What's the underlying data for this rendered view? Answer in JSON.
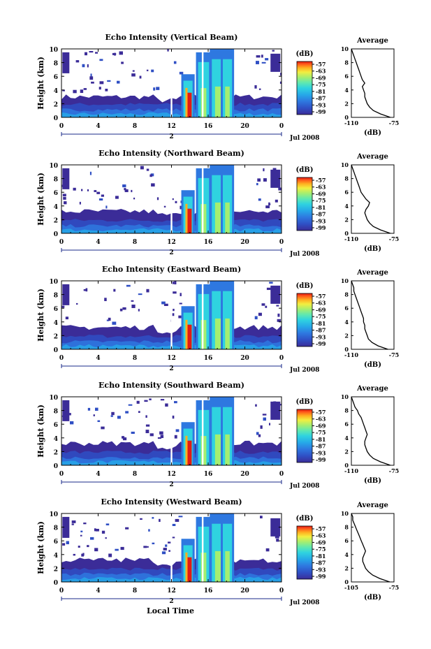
{
  "xlabel_bottom": "Local Time",
  "date_label": "Jul 2008",
  "day_label": "2",
  "colorbar_unit": "(dB)",
  "colorbar_ticks": [
    "-57",
    "-63",
    "-69",
    "-75",
    "-81",
    "-87",
    "-93",
    "-99"
  ],
  "average_title": "Average",
  "average_xlabel": "(dB)",
  "colorscale": [
    "#3b2c98",
    "#2f4fc4",
    "#2e78e0",
    "#26a7e8",
    "#2fd3e0",
    "#5fe8b0",
    "#a5ee70",
    "#f2ee40",
    "#ffb020",
    "#ff5a1a",
    "#e21a14"
  ],
  "chart_data": [
    {
      "type": "heatmap",
      "title": "Echo Intensity (Vertical Beam)",
      "ylabel": "Height (km)",
      "xlabel": "",
      "xticks": [
        "0",
        "4",
        "8",
        "12",
        "16",
        "20",
        "0"
      ],
      "xlim": [
        0,
        24
      ],
      "yticks": [
        "0",
        "2",
        "4",
        "6",
        "8",
        "10"
      ],
      "ylim": [
        0,
        10
      ],
      "colorbar_range_db": [
        -99,
        -57
      ],
      "average_profile": {
        "type": "line",
        "xticks": [
          "-110",
          "-75"
        ],
        "xlim": [
          -110,
          -75
        ],
        "yticks": [
          "0",
          "2",
          "4",
          "6",
          "8",
          "10"
        ],
        "height_km": [
          0,
          0.5,
          1,
          1.5,
          2,
          2.5,
          3,
          3.5,
          4,
          4.5,
          5,
          5.5,
          6,
          6.5,
          7,
          7.5,
          8,
          8.5,
          9,
          9.5,
          10
        ],
        "db": [
          -78,
          -86,
          -92,
          -95,
          -97,
          -98,
          -99,
          -99,
          -100,
          -101,
          -99,
          -101,
          -102,
          -103,
          -104,
          -105,
          -106,
          -107,
          -108,
          -109,
          -110
        ]
      }
    },
    {
      "type": "heatmap",
      "title": "Echo Intensity (Northward Beam)",
      "ylabel": "Height (km)",
      "xlabel": "",
      "xticks": [
        "0",
        "4",
        "8",
        "12",
        "16",
        "20",
        "0"
      ],
      "xlim": [
        0,
        24
      ],
      "yticks": [
        "0",
        "2",
        "4",
        "6",
        "8",
        "10"
      ],
      "ylim": [
        0,
        10
      ],
      "colorbar_range_db": [
        -99,
        -57
      ],
      "average_profile": {
        "type": "line",
        "xticks": [
          "-110",
          "-75"
        ],
        "xlim": [
          -110,
          -75
        ],
        "yticks": [
          "0",
          "2",
          "4",
          "6",
          "8",
          "10"
        ],
        "height_km": [
          0,
          0.5,
          1,
          1.5,
          2,
          2.5,
          3,
          3.5,
          4,
          4.5,
          5,
          5.5,
          6,
          6.5,
          7,
          7.5,
          8,
          8.5,
          9,
          9.5,
          10
        ],
        "db": [
          -78,
          -86,
          -92,
          -95,
          -97,
          -98,
          -99,
          -98,
          -96,
          -95,
          -98,
          -100,
          -102,
          -103,
          -104,
          -105,
          -106,
          -107,
          -108,
          -109,
          -110
        ]
      }
    },
    {
      "type": "heatmap",
      "title": "Echo Intensity (Eastward Beam)",
      "ylabel": "Height (km)",
      "xlabel": "",
      "xticks": [
        "0",
        "4",
        "8",
        "12",
        "16",
        "20",
        "0"
      ],
      "xlim": [
        0,
        24
      ],
      "yticks": [
        "0",
        "2",
        "4",
        "6",
        "8",
        "10"
      ],
      "ylim": [
        0,
        10
      ],
      "colorbar_range_db": [
        -99,
        -57
      ],
      "average_profile": {
        "type": "line",
        "xticks": [
          "-110",
          "-75"
        ],
        "xlim": [
          -110,
          -75
        ],
        "yticks": [
          "0",
          "2",
          "4",
          "6",
          "8",
          "10"
        ],
        "height_km": [
          0,
          0.5,
          1,
          1.5,
          2,
          2.5,
          3,
          3.5,
          4,
          4.5,
          5,
          5.5,
          6,
          6.5,
          7,
          7.5,
          8,
          8.5,
          9,
          9.5,
          10
        ],
        "db": [
          -80,
          -88,
          -93,
          -96,
          -97,
          -98,
          -99,
          -99,
          -100,
          -100,
          -101,
          -102,
          -103,
          -104,
          -105,
          -106,
          -107,
          -108,
          -108,
          -109,
          -110
        ]
      }
    },
    {
      "type": "heatmap",
      "title": "Echo Intensity (Southward Beam)",
      "ylabel": "Height (km)",
      "xlabel": "",
      "xticks": [
        "0",
        "4",
        "8",
        "12",
        "16",
        "20",
        "0"
      ],
      "xlim": [
        0,
        24
      ],
      "yticks": [
        "0",
        "2",
        "4",
        "6",
        "8",
        "10"
      ],
      "ylim": [
        0,
        10
      ],
      "colorbar_range_db": [
        -99,
        -57
      ],
      "average_profile": {
        "type": "line",
        "xticks": [
          "-110",
          "-75"
        ],
        "xlim": [
          -110,
          -75
        ],
        "yticks": [
          "0",
          "2",
          "4",
          "6",
          "8",
          "10"
        ],
        "height_km": [
          0,
          0.5,
          1,
          1.5,
          2,
          2.5,
          3,
          3.5,
          4,
          4.5,
          5,
          5.5,
          6,
          6.5,
          7,
          7.5,
          8,
          8.5,
          9,
          9.5,
          10
        ],
        "db": [
          -78,
          -86,
          -92,
          -95,
          -97,
          -98,
          -99,
          -99,
          -98,
          -97,
          -98,
          -99,
          -100,
          -101,
          -102,
          -104,
          -105,
          -107,
          -108,
          -109,
          -110
        ]
      }
    },
    {
      "type": "heatmap",
      "title": "Echo Intensity (Westward Beam)",
      "ylabel": "Height (km)",
      "xlabel": "Local Time",
      "xticks": [
        "0",
        "4",
        "8",
        "12",
        "16",
        "20",
        "0"
      ],
      "xlim": [
        0,
        24
      ],
      "yticks": [
        "0",
        "2",
        "4",
        "6",
        "8",
        "10"
      ],
      "ylim": [
        0,
        10
      ],
      "colorbar_range_db": [
        -99,
        -57
      ],
      "average_profile": {
        "type": "line",
        "xticks": [
          "-105",
          "-75"
        ],
        "xlim": [
          -105,
          -75
        ],
        "yticks": [
          "0",
          "2",
          "4",
          "6",
          "8",
          "10"
        ],
        "height_km": [
          0,
          0.5,
          1,
          1.5,
          2,
          2.5,
          3,
          3.5,
          4,
          4.5,
          5,
          5.5,
          6,
          6.5,
          7,
          7.5,
          8,
          8.5,
          9,
          9.5,
          10
        ],
        "db": [
          -78,
          -85,
          -90,
          -93,
          -95,
          -96,
          -97,
          -97,
          -96,
          -95,
          -96,
          -97,
          -98,
          -99,
          -100,
          -101,
          -102,
          -103,
          -104,
          -104,
          -105
        ]
      }
    }
  ]
}
